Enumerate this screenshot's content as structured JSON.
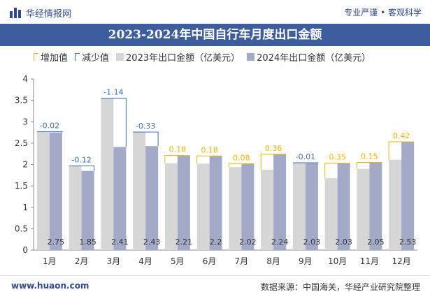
{
  "header": {
    "brand": "华经情报网",
    "slogan": "专业严谨 • 客观科学"
  },
  "footer": {
    "site": "www.huaon.com",
    "source": "数据来源：中国海关，华经产业研究院整理"
  },
  "colors": {
    "title_bar": "#3d5d9c",
    "increase": "#f0b400",
    "decrease": "#3f6fb0",
    "series_2023": "#d6d6d6",
    "series_2024": "#a2aac8"
  },
  "chart_data": {
    "type": "bar",
    "title": "2023-2024年中国自行车月度出口金额",
    "categories": [
      "1月",
      "2月",
      "3月",
      "4月",
      "5月",
      "6月",
      "7月",
      "8月",
      "9月",
      "10月",
      "11月",
      "12月"
    ],
    "legend": {
      "increase": "增加值",
      "decrease": "减少值",
      "position": "top-left"
    },
    "series": [
      {
        "name": "2023年出口金额（亿美元）",
        "values": [
          2.77,
          1.97,
          3.55,
          2.76,
          2.03,
          2.02,
          1.94,
          1.88,
          2.04,
          1.68,
          1.9,
          2.11
        ]
      },
      {
        "name": "2024年出口金额（亿美元）",
        "values": [
          2.75,
          1.85,
          2.41,
          2.43,
          2.21,
          2.2,
          2.02,
          2.24,
          2.03,
          2.03,
          2.05,
          2.53
        ]
      }
    ],
    "change_labels": [
      "-0.02",
      "-0.12",
      "-1.14",
      "-0.33",
      "0.18",
      "0.18",
      "0.08",
      "0.36",
      "-0.01",
      "0.35",
      "0.15",
      "0.42"
    ],
    "value_labels": [
      "2.75",
      "1.85",
      "2.41",
      "2.43",
      "2.21",
      "2.2",
      "2.02",
      "2.24",
      "2.03",
      "2.03",
      "2.05",
      "2.53"
    ],
    "ylim": [
      0,
      4
    ],
    "yticks": [
      "0",
      "0.5",
      "1",
      "1.5",
      "2",
      "2.5",
      "3",
      "3.5",
      "4"
    ],
    "grid": false
  }
}
